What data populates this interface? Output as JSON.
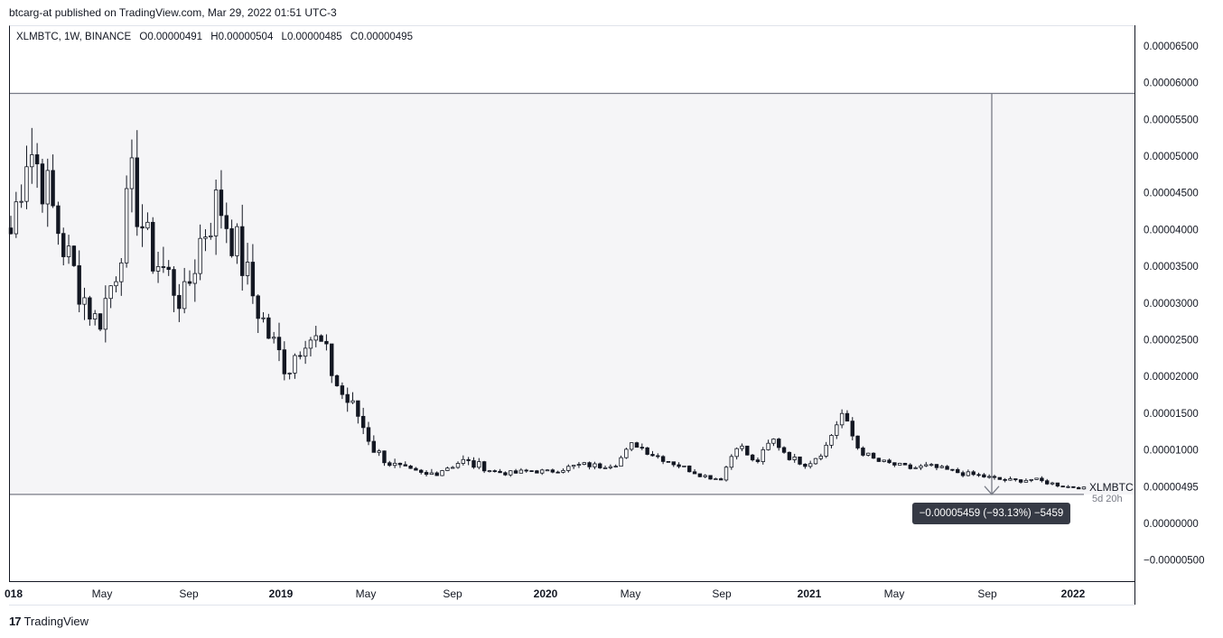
{
  "header": {
    "published_text": "btcarg-at published on TradingView.com, Mar 29, 2022 01:51 UTC-3"
  },
  "legend": {
    "symbol": "XLMBTC, 1W, BINANCE",
    "open": "O0.00000491",
    "high": "H0.00000504",
    "low": "L0.00000485",
    "close": "C0.00000495"
  },
  "price_axis": {
    "ticks": [
      "0.00006500",
      "0.00006000",
      "0.00005500",
      "0.00005000",
      "0.00004500",
      "0.00004000",
      "0.00003500",
      "0.00003000",
      "0.00002500",
      "0.00002000",
      "0.00001500",
      "0.00001000",
      "0.00000495",
      "0.00000000",
      "−0.00000500"
    ],
    "current_symbol": "XLMBTC",
    "countdown": "5d 20h"
  },
  "time_axis": {
    "labels": [
      "018",
      "May",
      "Sep",
      "2019",
      "May",
      "Sep",
      "2020",
      "May",
      "Sep",
      "2021",
      "May",
      "Sep",
      "2022"
    ]
  },
  "measure": {
    "text": "−0.00005459 (−93.13%) −5459"
  },
  "footer": {
    "brand": "TradingView",
    "logo": "17"
  },
  "colors": {
    "bg": "#ffffff",
    "text": "#131722",
    "box_fill": "#f5f5f7",
    "box_line": "#787b86",
    "label_bg": "#363a45"
  },
  "chart_data": {
    "type": "candlestick",
    "title": "XLMBTC, 1W, BINANCE",
    "ylim": [
      -6.5e-06,
      6.9e-05
    ],
    "x": [
      "2018-01",
      "2018-05",
      "2018-09",
      "2019-01",
      "2019-05",
      "2019-09",
      "2020-01",
      "2020-05",
      "2020-09",
      "2021-01",
      "2021-05",
      "2021-09",
      "2022-01"
    ],
    "series": [
      {
        "name": "XLMBTC",
        "close_path": [
          3.95e-05,
          5.2e-05,
          4.6e-05,
          3.8e-05,
          3.2e-05,
          2.7e-05,
          3.4e-05,
          4.6e-05,
          3.7e-05,
          3.4e-05,
          3e-05,
          3.9e-05,
          4.4e-05,
          3.8e-05,
          3.1e-05,
          2.5e-05,
          2.1e-05,
          2.6e-05,
          2.4e-05,
          1.8e-05,
          1.5e-05,
          1e-05,
          8e-06,
          7e-06,
          6.5e-06,
          7.5e-06,
          8.5e-06,
          7.8e-06,
          7e-06,
          6.8e-06,
          7.2e-06,
          7e-06,
          7.5e-06,
          8e-06,
          7.8e-06,
          8.2e-06,
          1.1e-05,
          9.5e-06,
          8.5e-06,
          7.5e-06,
          6.5e-06,
          6e-06,
          1.1e-05,
          8e-06,
          1.15e-05,
          9e-06,
          8e-06,
          1e-05,
          1.5e-05,
          1e-05,
          8.5e-06,
          8e-06,
          7.5e-06,
          7.8e-06,
          7.3e-06,
          6.8e-06,
          6.5e-06,
          6e-06,
          5.8e-06,
          6e-06,
          5.5e-06,
          5e-06,
          4.9e-06
        ]
      }
    ],
    "measure": {
      "from": 5.854e-05,
      "to": 3.95e-06,
      "change": "−0.00005459 (−93.13%) −5459"
    },
    "last_price": "0.00000495"
  }
}
